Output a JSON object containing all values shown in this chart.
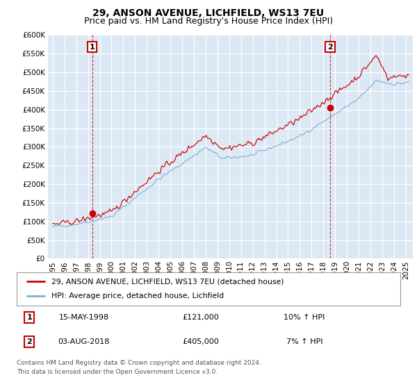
{
  "title": "29, ANSON AVENUE, LICHFIELD, WS13 7EU",
  "subtitle": "Price paid vs. HM Land Registry's House Price Index (HPI)",
  "ylim": [
    0,
    600000
  ],
  "yticks": [
    0,
    50000,
    100000,
    150000,
    200000,
    250000,
    300000,
    350000,
    400000,
    450000,
    500000,
    550000,
    600000
  ],
  "xlim_start": 1994.6,
  "xlim_end": 2025.6,
  "sale1_x": 1998.37,
  "sale1_y": 121000,
  "sale1_label": "1",
  "sale2_x": 2018.58,
  "sale2_y": 405000,
  "sale2_label": "2",
  "red_color": "#cc0000",
  "blue_color": "#7ab0d4",
  "chart_bg": "#dce9f5",
  "background_color": "#ffffff",
  "grid_color": "#ffffff",
  "legend_label_red": "29, ANSON AVENUE, LICHFIELD, WS13 7EU (detached house)",
  "legend_label_blue": "HPI: Average price, detached house, Lichfield",
  "table_row1": [
    "1",
    "15-MAY-1998",
    "£121,000",
    "10% ↑ HPI"
  ],
  "table_row2": [
    "2",
    "03-AUG-2018",
    "£405,000",
    "7% ↑ HPI"
  ],
  "footnote": "Contains HM Land Registry data © Crown copyright and database right 2024.\nThis data is licensed under the Open Government Licence v3.0.",
  "title_fontsize": 10,
  "subtitle_fontsize": 9,
  "tick_fontsize": 7.5
}
